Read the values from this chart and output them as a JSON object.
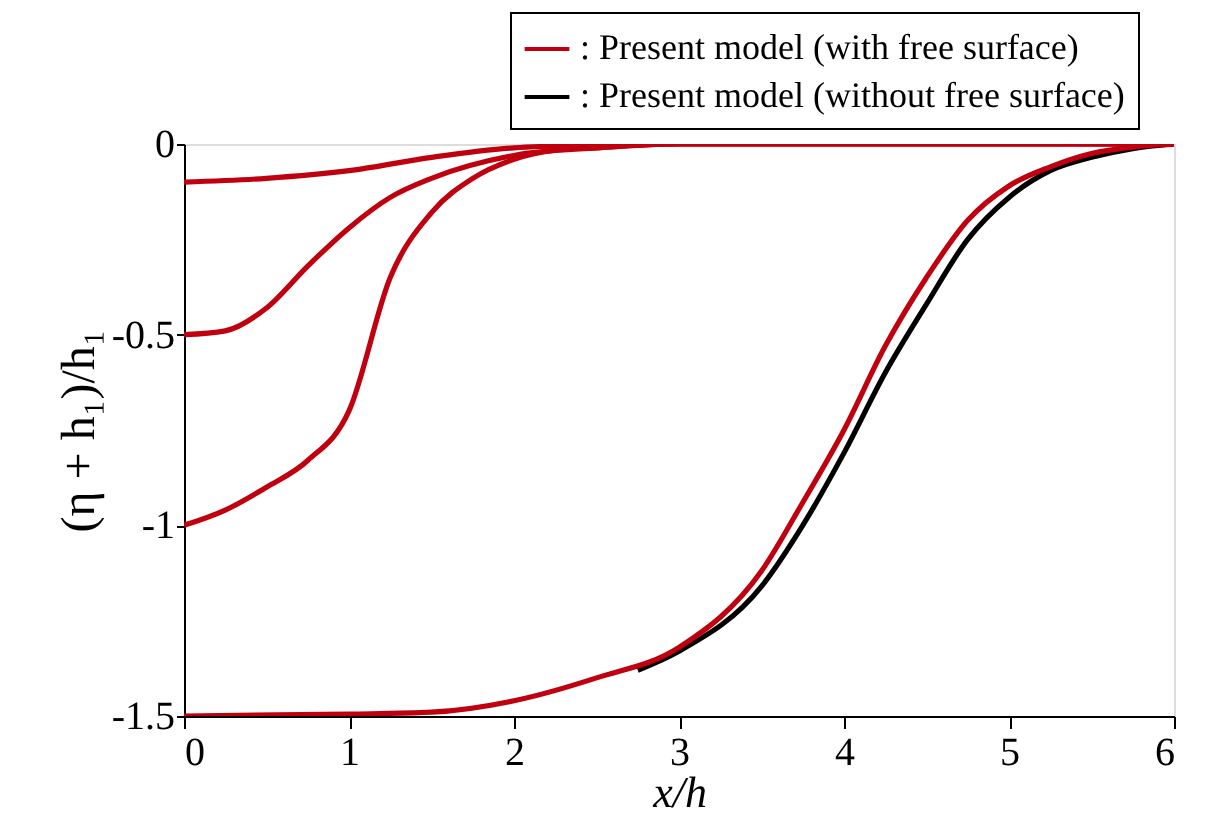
{
  "chart_data": {
    "type": "line",
    "xlabel": "x/h",
    "ylabel": "(η + h₁)/h₁",
    "xlim": [
      0,
      6
    ],
    "ylim": [
      -1.5,
      0
    ],
    "xticks": [
      0,
      1,
      2,
      3,
      4,
      5,
      6
    ],
    "yticks": [
      0,
      {
        "value": -0.5,
        "label": "-0.5"
      },
      {
        "value": -1,
        "label": "-1"
      },
      {
        "value": -1.5,
        "label": "-1.5"
      }
    ],
    "grid": false,
    "legend": "top right",
    "marker": "none",
    "line_style": "solid",
    "series": [
      {
        "name": ": Present model (without free surface)",
        "color": "#000000",
        "x": [
          2.75,
          3,
          3.5,
          3.75,
          4,
          4.25,
          4.5,
          4.75,
          5,
          5.25,
          5.5,
          5.75,
          6
        ],
        "values": [
          -1.38,
          -1.33,
          -1.16,
          -1.0,
          -0.81,
          -0.6,
          -0.42,
          -0.25,
          -0.14,
          -0.07,
          -0.035,
          -0.012,
          0
        ]
      },
      {
        "name": ": Present model (with free surface)",
        "color": "#c0000e",
        "x": [
          0,
          0.5,
          1,
          1.5,
          2,
          2.5,
          3,
          6
        ],
        "values": [
          -0.1,
          -0.09,
          -0.07,
          -0.035,
          -0.01,
          -0.003,
          0,
          0
        ]
      },
      {
        "color": "#c0000e",
        "x": [
          0,
          0.25,
          0.5,
          0.75,
          1,
          1.25,
          1.5,
          2,
          2.5,
          3,
          6
        ],
        "values": [
          -0.5,
          -0.49,
          -0.43,
          -0.32,
          -0.22,
          -0.14,
          -0.09,
          -0.03,
          -0.01,
          0,
          0
        ]
      },
      {
        "color": "#c0000e",
        "x": [
          0,
          0.25,
          0.5,
          0.75,
          1,
          1.25,
          1.5,
          1.75,
          2,
          2.25,
          2.5,
          3,
          6
        ],
        "values": [
          -1,
          -0.96,
          -0.9,
          -0.83,
          -0.7,
          -0.35,
          -0.18,
          -0.09,
          -0.04,
          -0.016,
          -0.01,
          0,
          0
        ]
      },
      {
        "color": "#c0000e",
        "x": [
          0,
          1,
          1.5,
          2,
          2.5,
          3,
          3.5,
          3.75,
          4,
          4.25,
          4.5,
          4.75,
          5,
          5.25,
          5.5,
          5.75,
          6
        ],
        "values": [
          -1.5,
          -1.495,
          -1.49,
          -1.46,
          -1.4,
          -1.32,
          -1.12,
          -0.94,
          -0.75,
          -0.53,
          -0.35,
          -0.2,
          -0.11,
          -0.06,
          -0.025,
          -0.008,
          0
        ]
      }
    ]
  }
}
